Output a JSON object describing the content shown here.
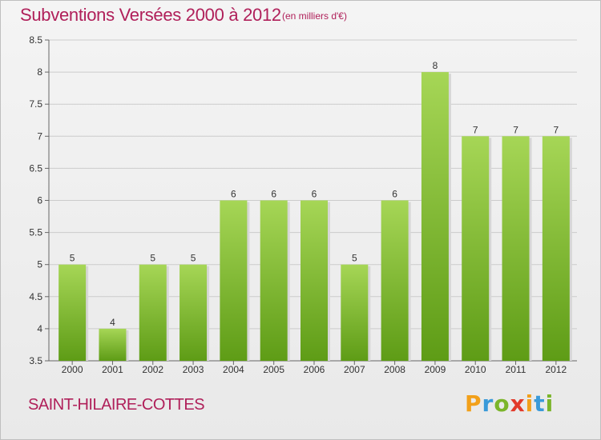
{
  "header": {
    "title": "Subventions Versées 2000 à 2012",
    "subtitle": "(en milliers d'€)"
  },
  "footer": {
    "commune": "SAINT-HILAIRE-COTTES",
    "logo_letters": [
      "P",
      "r",
      "o",
      "x",
      "i",
      "t",
      "i"
    ]
  },
  "colors": {
    "accent": "#b0205a",
    "bar_light": "#9fd24f",
    "bar_dark": "#62a01a",
    "logo": [
      "#f2a01a",
      "#3a9ad9",
      "#7bb52a",
      "#e23a2a",
      "#f2a01a",
      "#3a9ad9",
      "#7bb52a"
    ]
  },
  "chart_data": {
    "type": "bar",
    "title": "Subventions Versées 2000 à 2012",
    "subtitle": "(en milliers d'€)",
    "categories": [
      "2000",
      "2001",
      "2002",
      "2003",
      "2004",
      "2005",
      "2006",
      "2007",
      "2008",
      "2009",
      "2010",
      "2011",
      "2012"
    ],
    "values": [
      5,
      4,
      5,
      5,
      6,
      6,
      6,
      5,
      6,
      8,
      7,
      7,
      7
    ],
    "value_labels": [
      "5",
      "4",
      "5",
      "5",
      "6",
      "6",
      "6",
      "5",
      "6",
      "8",
      "7",
      "7",
      "7"
    ],
    "ylim": [
      3.5,
      8.5
    ],
    "yticks": [
      "3.5",
      "4",
      "4.5",
      "5",
      "5.5",
      "6",
      "6.5",
      "7",
      "7.5",
      "8",
      "8.5"
    ],
    "ytick_values": [
      3.5,
      4,
      4.5,
      5,
      5.5,
      6,
      6.5,
      7,
      7.5,
      8,
      8.5
    ],
    "grid": true,
    "legend": "none"
  }
}
